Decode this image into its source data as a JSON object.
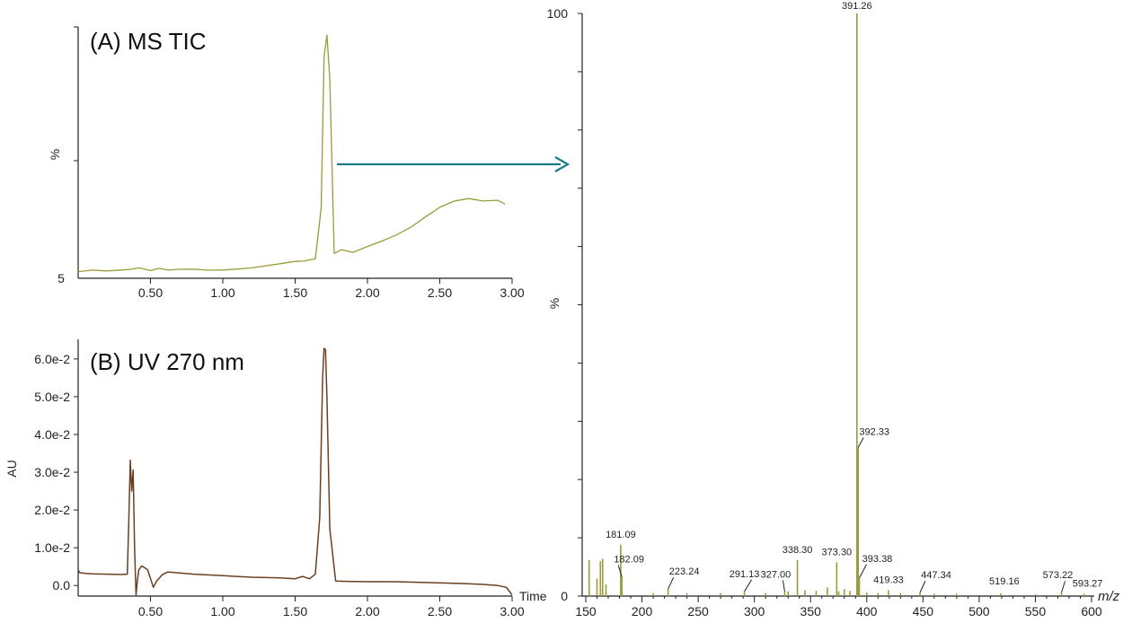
{
  "colors": {
    "ms": "#9a9b3a",
    "uv": "#6b3f1f",
    "arrow": "#1b7a8c",
    "axis": "#222222"
  },
  "chart_data": [
    {
      "id": "ms_tic",
      "type": "line",
      "title": "(A) MS  TIC",
      "xlabel": "",
      "ylabel": "%",
      "xlim": [
        0,
        3.0
      ],
      "ylim": [
        5,
        100
      ],
      "x_ticks": [
        "0.50",
        "1.00",
        "1.50",
        "2.00",
        "2.50",
        "3.00"
      ],
      "y_tick_labels": [
        "5"
      ],
      "series": [
        {
          "x": [
            0.0,
            0.1,
            0.2,
            0.3,
            0.36,
            0.42,
            0.5,
            0.56,
            0.62,
            0.7,
            0.8,
            0.9,
            1.0,
            1.1,
            1.2,
            1.3,
            1.4,
            1.5,
            1.56,
            1.64,
            1.68,
            1.7,
            1.72,
            1.74,
            1.77,
            1.82,
            1.9,
            2.0,
            2.1,
            2.2,
            2.3,
            2.4,
            2.5,
            2.6,
            2.7,
            2.8,
            2.9,
            2.95
          ],
          "y": [
            7.5,
            7.8,
            7.4,
            7.9,
            8.5,
            9.3,
            8.3,
            8.9,
            7.9,
            8.0,
            8.1,
            8.0,
            8.4,
            8.9,
            9.2,
            9.7,
            10.2,
            11.0,
            11.3,
            12.5,
            32.0,
            89.0,
            97.0,
            80.0,
            14.0,
            15.5,
            17.0,
            19.0,
            20.5,
            22.0,
            24.0,
            27.0,
            30.0,
            32.0,
            33.0,
            32.5,
            33.5,
            33.0
          ]
        }
      ]
    },
    {
      "id": "uv_270",
      "type": "line",
      "title": "(B) UV 270  nm",
      "xlabel": "Time",
      "ylabel": "AU",
      "xlim": [
        0,
        3.0
      ],
      "ylim": [
        -0.0028,
        0.0652
      ],
      "x_ticks": [
        "0.50",
        "1.00",
        "1.50",
        "2.00",
        "2.50",
        "3.00"
      ],
      "y_ticks": [
        "0.0",
        "1.0e-2",
        "2.0e-2",
        "3.0e-2",
        "4.0e-2",
        "5.0e-2",
        "6.0e-2"
      ],
      "series": [
        {
          "x": [
            0.0,
            0.01,
            0.05,
            0.1,
            0.2,
            0.3,
            0.34,
            0.35,
            0.36,
            0.37,
            0.38,
            0.39,
            0.4,
            0.41,
            0.42,
            0.44,
            0.48,
            0.52,
            0.54,
            0.58,
            0.62,
            0.7,
            0.8,
            1.0,
            1.2,
            1.4,
            1.5,
            1.55,
            1.6,
            1.64,
            1.67,
            1.69,
            1.7,
            1.71,
            1.72,
            1.74,
            1.78,
            1.85,
            2.0,
            2.2,
            2.4,
            2.6,
            2.8,
            2.9,
            2.96,
            2.98,
            3.0
          ],
          "y": [
            0.0042,
            0.0034,
            0.0032,
            0.0031,
            0.003,
            0.0029,
            0.003,
            0.0165,
            0.0332,
            0.025,
            0.0306,
            0.01,
            -0.0025,
            0.0015,
            0.0042,
            0.0052,
            0.0042,
            -0.0005,
            0.001,
            0.0028,
            0.0036,
            0.0033,
            0.003,
            0.0026,
            0.0022,
            0.002,
            0.0018,
            0.0024,
            0.0018,
            0.003,
            0.018,
            0.055,
            0.0628,
            0.0625,
            0.05,
            0.015,
            0.0012,
            0.0011,
            0.001,
            0.001,
            0.0008,
            0.0006,
            0.0003,
            0.0,
            -0.0005,
            -0.0015,
            -0.0025
          ]
        }
      ]
    },
    {
      "id": "mass_spectrum",
      "type": "bar",
      "xlabel": "m/z",
      "ylabel": "%",
      "xlim": [
        150,
        600
      ],
      "ylim": [
        0,
        100
      ],
      "x_ticks": [
        "150",
        "200",
        "250",
        "300",
        "350",
        "400",
        "450",
        "500",
        "550",
        "600"
      ],
      "y_tick_labels": [
        "0",
        "100"
      ],
      "peaks": {
        "mz": [
          153,
          160,
          163,
          165,
          168,
          181.09,
          182.09,
          210,
          223.24,
          240,
          270,
          291.13,
          310,
          327.0,
          330,
          338.3,
          345,
          355,
          365,
          373.3,
          375,
          380,
          385,
          391.26,
          392.33,
          393.38,
          400,
          410,
          419.33,
          430,
          447.34,
          460,
          480,
          519.16,
          550,
          573.22,
          593.27
        ],
        "intensity": [
          6.2,
          3.0,
          6.0,
          6.4,
          2.0,
          8.8,
          3.3,
          0.5,
          1.2,
          0.5,
          0.5,
          0.8,
          0.5,
          0.7,
          0.8,
          6.2,
          1.0,
          0.9,
          1.5,
          5.8,
          0.8,
          1.2,
          0.9,
          100,
          25.5,
          3.1,
          0.6,
          0.5,
          1.0,
          0.5,
          0.6,
          0.4,
          0.4,
          0.5,
          0.3,
          0.6,
          0.4
        ]
      },
      "labels": [
        "181.09",
        "182.09",
        "223.24",
        "291.13",
        "327.00",
        "338.30",
        "373.30",
        "391.26",
        "392.33",
        "393.38",
        "419.33",
        "447.34",
        "519.16",
        "573.22",
        "593.27"
      ]
    }
  ]
}
